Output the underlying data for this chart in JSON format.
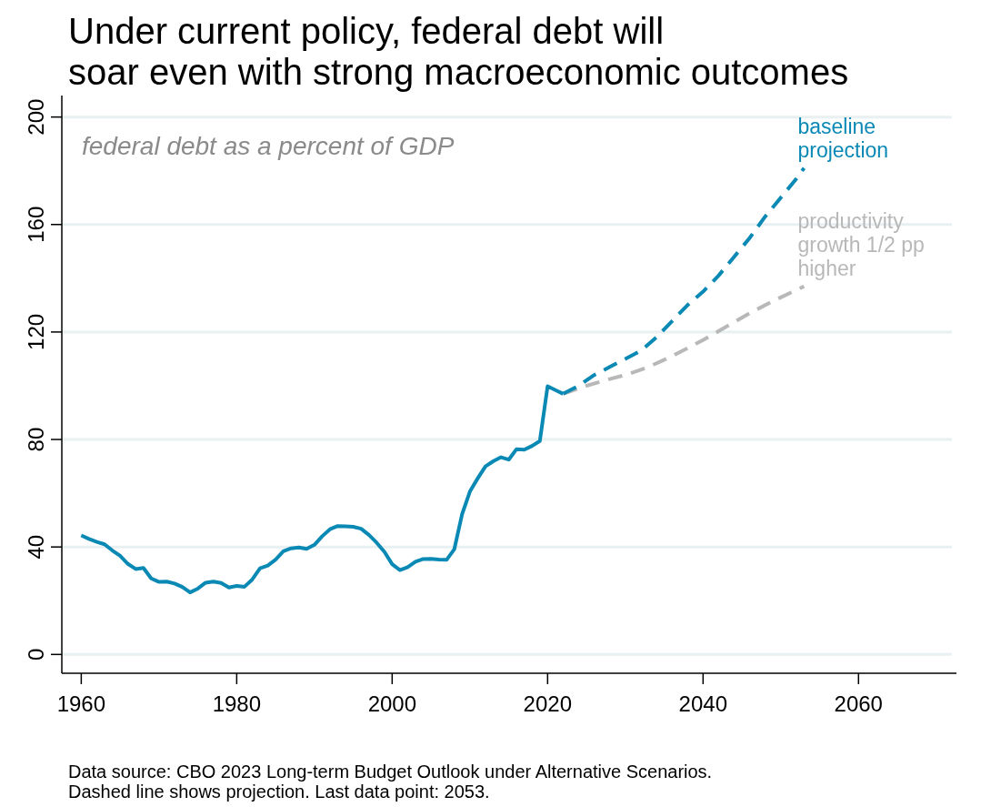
{
  "chart_data": {
    "type": "line",
    "title": "Under current policy, federal debt will\nsoar even with strong macroeconomic outcomes",
    "subtitle": "federal debt as a percent of GDP",
    "annotations": [
      "Data source: CBO 2023 Long-term Budget Outlook under Alternative Scenarios.",
      "Dashed line shows projection. Last data point: 2053."
    ],
    "xlim": [
      1957.5,
      2072.6
    ],
    "xticks": [
      1960,
      1980,
      2000,
      2020,
      2040,
      2060
    ],
    "ylim": [
      -7,
      208
    ],
    "yticks": [
      0,
      40,
      80,
      120,
      160,
      200
    ],
    "grid": "y",
    "series": [
      {
        "color": "#0a89b5",
        "line_style": "solid",
        "x": [
          1960,
          1961,
          1962,
          1963,
          1964,
          1965,
          1966,
          1967,
          1968,
          1969,
          1970,
          1971,
          1972,
          1973,
          1974,
          1975,
          1976,
          1977,
          1978,
          1979,
          1980,
          1981,
          1982,
          1983,
          1984,
          1985,
          1986,
          1987,
          1988,
          1989,
          1990,
          1991,
          1992,
          1993,
          1994,
          1995,
          1996,
          1997,
          1998,
          1999,
          2000,
          2001,
          2002,
          2003,
          2004,
          2005,
          2006,
          2007,
          2008,
          2009,
          2010,
          2011,
          2012,
          2013,
          2014,
          2015,
          2016,
          2017,
          2018,
          2019,
          2020,
          2021,
          2022
        ],
        "values": [
          44.3,
          43,
          41.9,
          41,
          38.7,
          36.7,
          33.7,
          31.8,
          32.2,
          28.3,
          27,
          27.1,
          26.4,
          25.1,
          23.1,
          24.5,
          26.7,
          27.1,
          26.6,
          24.9,
          25.5,
          25.2,
          27.9,
          32.1,
          33.1,
          35.3,
          38.4,
          39.5,
          39.8,
          39.3,
          40.8,
          44,
          46.6,
          47.8,
          47.7,
          47.5,
          46.8,
          44.5,
          41.6,
          38.2,
          33.6,
          31.4,
          32.5,
          34.5,
          35.5,
          35.6,
          35.3,
          35.2,
          39.2,
          52.2,
          60.6,
          65.5,
          70,
          71.9,
          73.4,
          72.5,
          76.4,
          76.2,
          77.6,
          79.4,
          99.8,
          98.4,
          97
        ]
      },
      {
        "name": "productivity growth 1/2 pp higher",
        "color": "#b8b8b8",
        "line_style": "dashed",
        "x": [
          2022,
          2025,
          2028,
          2030,
          2033,
          2036,
          2040,
          2043,
          2046,
          2049,
          2053
        ],
        "values": [
          97,
          100,
          102.5,
          104,
          107,
          111,
          117,
          122,
          127,
          131.5,
          137
        ]
      },
      {
        "name": "baseline projection",
        "color": "#0a89b5",
        "line_style": "dashed",
        "x": [
          2022,
          2024,
          2026,
          2028,
          2030,
          2032,
          2034,
          2036,
          2038,
          2040,
          2042,
          2044,
          2046,
          2048,
          2050,
          2052,
          2053
        ],
        "values": [
          97,
          100,
          104,
          107,
          110,
          113,
          118,
          124,
          130,
          135,
          141,
          148,
          155,
          163,
          170,
          177,
          181
        ]
      }
    ]
  }
}
